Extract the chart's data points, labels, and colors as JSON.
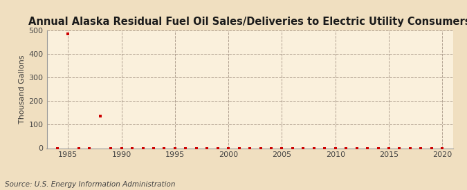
{
  "title": "Annual Alaska Residual Fuel Oil Sales/Deliveries to Electric Utility Consumers",
  "ylabel": "Thousand Gallons",
  "source": "Source: U.S. Energy Information Administration",
  "background_color": "#f0dfc0",
  "plot_background_color": "#faf0dc",
  "grid_color": "#b0a090",
  "marker_color": "#cc0000",
  "xlim": [
    1983,
    2021
  ],
  "ylim": [
    0,
    500
  ],
  "xticks": [
    1985,
    1990,
    1995,
    2000,
    2005,
    2010,
    2015,
    2020
  ],
  "yticks": [
    0,
    100,
    200,
    300,
    400,
    500
  ],
  "years": [
    1984,
    1985,
    1986,
    1987,
    1988,
    1989,
    1990,
    1991,
    1992,
    1993,
    1994,
    1995,
    1996,
    1997,
    1998,
    1999,
    2000,
    2001,
    2002,
    2003,
    2004,
    2005,
    2006,
    2007,
    2008,
    2009,
    2010,
    2011,
    2012,
    2013,
    2014,
    2015,
    2016,
    2017,
    2018,
    2019,
    2020
  ],
  "values": [
    0,
    484,
    0,
    0,
    137,
    0,
    0,
    0,
    0,
    0,
    0,
    0,
    0,
    0,
    0,
    0,
    0,
    0,
    0,
    0,
    0,
    0,
    0,
    0,
    0,
    0,
    0,
    0,
    0,
    0,
    0,
    0,
    0,
    0,
    0,
    0,
    0
  ],
  "title_fontsize": 10.5,
  "ylabel_fontsize": 8,
  "tick_fontsize": 8,
  "source_fontsize": 7.5
}
